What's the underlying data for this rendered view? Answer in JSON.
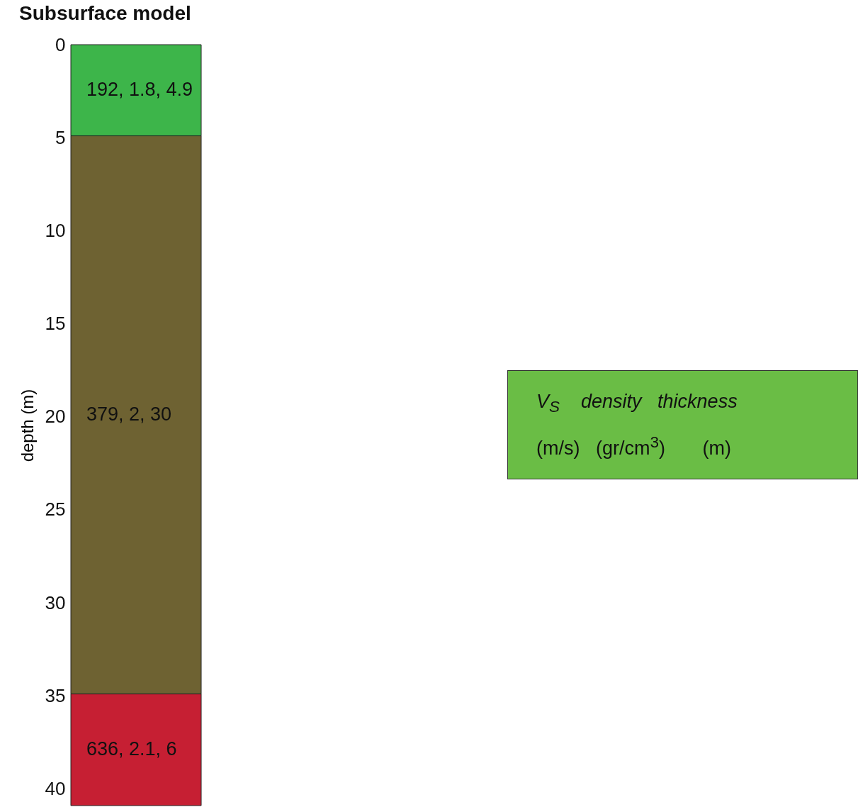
{
  "chart_data": {
    "type": "bar",
    "title": "Subsurface model",
    "ylabel": "depth (m)",
    "categories": [
      null
    ],
    "stacked": true,
    "series": [
      {
        "color": "#3db54a",
        "values": [
          4.9
        ],
        "value_labels": [
          "192, 1.8, 4.9"
        ]
      },
      {
        "color": "#6e6232",
        "values": [
          30
        ],
        "value_labels": [
          "379, 2, 30"
        ]
      },
      {
        "color": "#c61f33",
        "values": [
          6
        ],
        "value_labels": [
          "636, 2.1, 6"
        ]
      }
    ],
    "ylim": [
      40.9,
      0
    ],
    "yticks": [
      0,
      5,
      10,
      15,
      20,
      25,
      30,
      35,
      40
    ],
    "tick_labels": "y",
    "annotations": [
      "V$_{S}$    density   thickness",
      "(m/s)   (gr/cm$^{3}$)       (m)"
    ]
  }
}
